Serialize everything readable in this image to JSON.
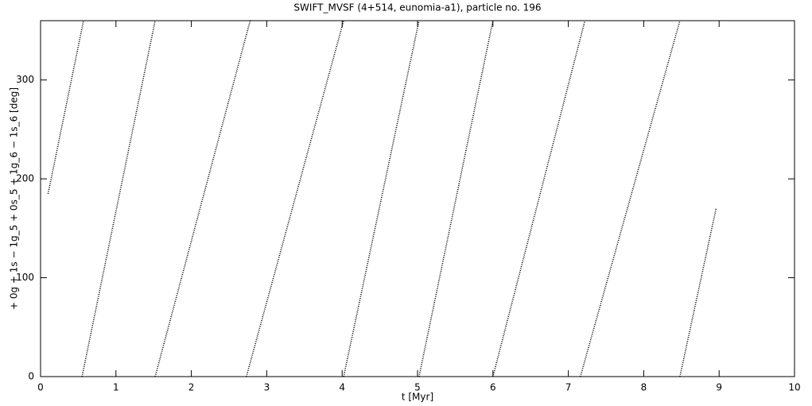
{
  "chart_data": {
    "type": "line",
    "title": "SWIFT_MVSF (4+514, eunomia-a1), particle no. 196",
    "x_label": "t [Myr]",
    "y_label": "+ 0g + 1s − 1g_5 + 0s_5 + 1g_6 − 1s_6 [deg]",
    "x": [
      0.1,
      0.57,
      null,
      0.55,
      1.52,
      null,
      1.52,
      2.78,
      null,
      2.73,
      4.02,
      null,
      4.02,
      5.02,
      null,
      5.02,
      6.0,
      null,
      6.0,
      7.22,
      null,
      7.16,
      8.48,
      null,
      8.48,
      8.96
    ],
    "series": [
      {
        "color": "#000000",
        "values": [
          185,
          360,
          null,
          0,
          360,
          null,
          0,
          360,
          null,
          0,
          360,
          null,
          0,
          360,
          null,
          0,
          360,
          null,
          0,
          360,
          null,
          0,
          360,
          null,
          0,
          170
        ]
      }
    ],
    "xlim": [
      0,
      10
    ],
    "xticks": [
      0,
      1,
      2,
      3,
      4,
      5,
      6,
      7,
      8,
      9,
      10
    ],
    "ylim": [
      0,
      360
    ],
    "yticks": [
      0,
      100,
      200,
      300
    ],
    "grid": false
  }
}
